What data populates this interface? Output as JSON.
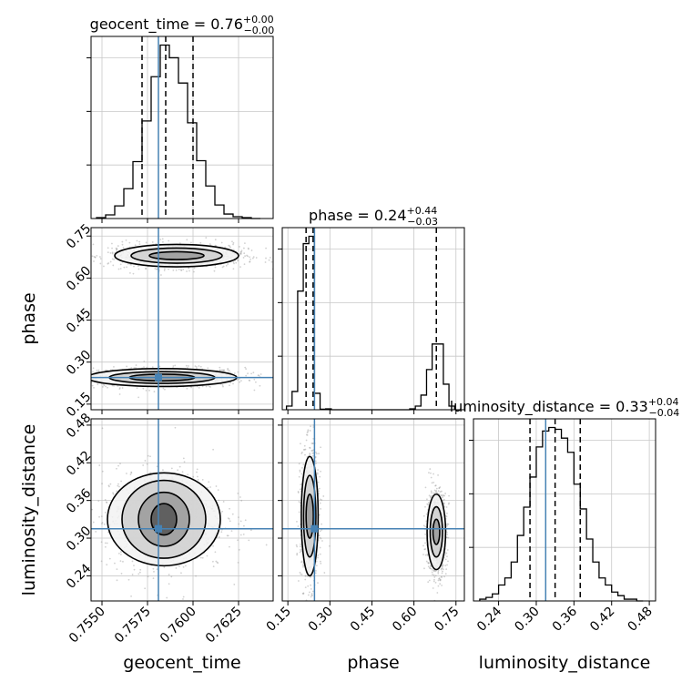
{
  "chart_data": {
    "type": "corner",
    "parameters": [
      "geocent_time",
      "phase",
      "luminosity_distance"
    ],
    "truths": {
      "geocent_time": 0.7581,
      "phase": 0.245,
      "luminosity_distance": 0.315
    },
    "colors": {
      "truth": "#4682b4",
      "hist": "#000000",
      "grid": "#c8c8c8",
      "points": "#9a9a9a"
    },
    "titles": [
      {
        "param": "geocent_time",
        "prefix": "geocent_time = ",
        "median": "0.76",
        "plus": "+0.00",
        "minus": "−0.00"
      },
      {
        "param": "phase",
        "prefix": "phase = ",
        "median": "0.24",
        "plus": "+0.44",
        "minus": "−0.03"
      },
      {
        "param": "luminosity_distance",
        "prefix": "luminosity_distance = ",
        "median": "0.33",
        "plus": "+0.04",
        "minus": "−0.04"
      }
    ],
    "axes": {
      "geocent_time": {
        "label": "geocent_time",
        "lim": [
          0.7544,
          0.7644
        ],
        "ticks": [
          0.755,
          0.7575,
          0.76,
          0.7625
        ],
        "tick_labels": [
          "0.7550",
          "0.7575",
          "0.7600",
          "0.7625"
        ]
      },
      "phase": {
        "label": "phase",
        "lim": [
          0.13,
          0.78
        ],
        "ticks": [
          0.15,
          0.3,
          0.45,
          0.6,
          0.75
        ],
        "tick_labels": [
          "0.15",
          "0.30",
          "0.45",
          "0.60",
          "0.75"
        ]
      },
      "luminosity_distance": {
        "label": "luminosity_distance",
        "lim": [
          0.2,
          0.49
        ],
        "ticks": [
          0.24,
          0.3,
          0.36,
          0.42,
          0.48
        ],
        "tick_labels": [
          "0.24",
          "0.30",
          "0.36",
          "0.42",
          "0.48"
        ]
      }
    },
    "histograms": {
      "geocent_time": {
        "quantiles": [
          0.7572,
          0.7585,
          0.76
        ],
        "bins": [
          0.7547,
          0.7552,
          0.7557,
          0.7562,
          0.7567,
          0.7572,
          0.7577,
          0.7582,
          0.7587,
          0.7592,
          0.7597,
          0.7602,
          0.7607,
          0.7612,
          0.7617,
          0.7622,
          0.7627,
          0.7632,
          0.7637
        ],
        "counts": [
          1,
          4,
          14,
          33,
          63,
          108,
          157,
          192,
          178,
          150,
          106,
          64,
          36,
          15,
          5,
          2,
          1,
          0
        ]
      },
      "phase": {
        "quantiles": [
          0.215,
          0.24,
          0.68
        ],
        "bins": [
          0.145,
          0.165,
          0.185,
          0.205,
          0.225,
          0.245,
          0.265,
          0.285,
          0.305,
          0.325,
          0.345,
          0.365,
          0.385,
          0.405,
          0.425,
          0.445,
          0.465,
          0.485,
          0.505,
          0.525,
          0.545,
          0.565,
          0.585,
          0.605,
          0.625,
          0.645,
          0.665,
          0.685,
          0.705,
          0.725,
          0.745
        ],
        "counts": [
          2,
          10,
          65,
          91,
          95,
          9,
          0.3,
          0.5,
          0,
          0,
          0,
          0,
          0,
          0,
          0,
          0,
          0,
          0,
          0,
          0,
          0,
          0,
          0.5,
          2,
          8,
          22,
          36,
          36,
          14,
          2
        ]
      },
      "luminosity_distance": {
        "quantiles": [
          0.29,
          0.33,
          0.37
        ],
        "bins": [
          0.21,
          0.22,
          0.23,
          0.24,
          0.25,
          0.26,
          0.27,
          0.28,
          0.29,
          0.3,
          0.31,
          0.32,
          0.33,
          0.34,
          0.35,
          0.36,
          0.37,
          0.38,
          0.39,
          0.4,
          0.41,
          0.42,
          0.43,
          0.44,
          0.45,
          0.46,
          0.47
        ],
        "counts": [
          1,
          2,
          4,
          9,
          13,
          22,
          37,
          53,
          70,
          87,
          96,
          98,
          97,
          92,
          84,
          66,
          52,
          35,
          22,
          13,
          9,
          5,
          3,
          1,
          1,
          0
        ]
      }
    },
    "contours": [
      {
        "x": "geocent_time",
        "y": "phase",
        "blobs": [
          {
            "cx": 0.7583,
            "cy": 0.245,
            "levels": [
              [
                0.0018,
                0.012
              ],
              [
                0.0029,
                0.021
              ],
              [
                0.0041,
                0.032
              ]
            ]
          },
          {
            "cx": 0.7591,
            "cy": 0.68,
            "levels": [
              [
                0.0015,
                0.014
              ],
              [
                0.0025,
                0.027
              ],
              [
                0.0034,
                0.04
              ]
            ]
          }
        ]
      },
      {
        "x": "geocent_time",
        "y": "luminosity_distance",
        "blobs": [
          {
            "cx": 0.7584,
            "cy": 0.33,
            "levels": [
              [
                0.0007,
                0.025
              ],
              [
                0.0014,
                0.043
              ],
              [
                0.0023,
                0.062
              ],
              [
                0.0031,
                0.074
              ]
            ]
          }
        ]
      },
      {
        "x": "phase",
        "y": "luminosity_distance",
        "blobs": [
          {
            "cx": 0.228,
            "cy": 0.335,
            "levels": [
              [
                0.013,
                0.035
              ],
              [
                0.022,
                0.065
              ],
              [
                0.03,
                0.095
              ]
            ]
          },
          {
            "cx": 0.68,
            "cy": 0.31,
            "levels": [
              [
                0.012,
                0.02
              ],
              [
                0.022,
                0.04
              ],
              [
                0.033,
                0.06
              ]
            ]
          }
        ]
      }
    ]
  }
}
